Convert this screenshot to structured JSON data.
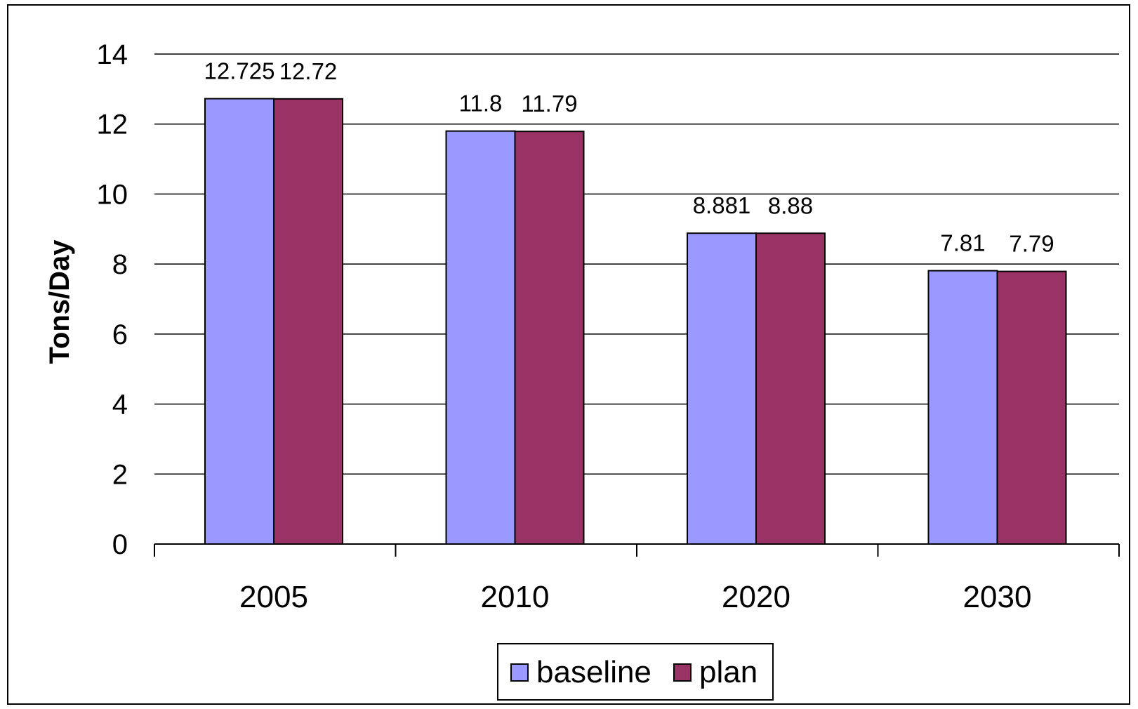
{
  "chart_data": {
    "type": "bar",
    "title": "",
    "xlabel": "",
    "ylabel": "Tons/Day",
    "ylim": [
      0,
      14
    ],
    "ytick_step": 2,
    "yticks": [
      "0",
      "2",
      "4",
      "6",
      "8",
      "10",
      "12",
      "14"
    ],
    "grid": true,
    "legend_position": "bottom",
    "categories": [
      "2005",
      "2010",
      "2020",
      "2030"
    ],
    "series": [
      {
        "name": "baseline",
        "color": "#9999ff",
        "values": [
          12.725,
          11.8,
          8.881,
          7.81
        ],
        "labels": [
          "12.725",
          "11.8",
          "8.881",
          "7.81"
        ]
      },
      {
        "name": "plan",
        "color": "#993366",
        "values": [
          12.72,
          11.79,
          8.88,
          7.79
        ],
        "labels": [
          "12.72",
          "11.79",
          "8.88",
          "7.79"
        ]
      }
    ]
  }
}
